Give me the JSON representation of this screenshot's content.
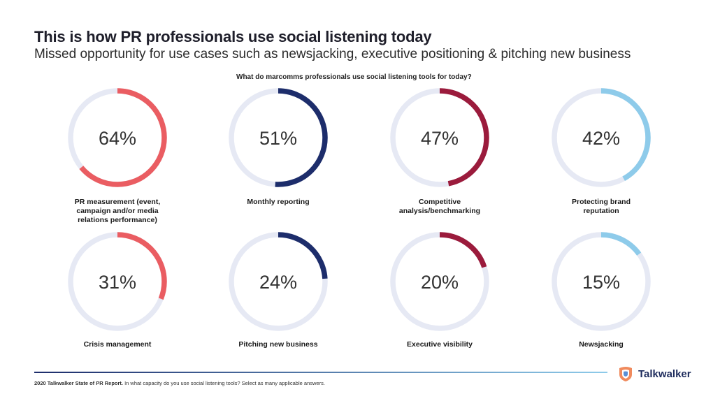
{
  "title": "This is how PR professionals use social listening today",
  "subtitle": "Missed opportunity for use cases such as newsjacking, executive positioning & pitching new business",
  "chart_heading": "What do marcomms professionals use social listening tools for today?",
  "source": {
    "bold": "2020 Talkwalker State of PR Report.",
    "text": " In what capacity do you use social listening tools? Select as many applicable answers."
  },
  "logo": {
    "text": "Talkwalker",
    "icon": "talkwalker-logo-icon"
  },
  "colors": {
    "track": "#e6e9f4",
    "coral": "#ea5d62",
    "navy": "#1d2d6b",
    "crimson": "#9b1b3c",
    "skyblue": "#8ecbea",
    "footer_line_start": "#1d2d6b",
    "footer_line_end": "#8ecbea"
  },
  "chart_data": {
    "type": "donut",
    "title": "What do marcomms professionals use social listening tools for today?",
    "unit": "%",
    "max": 100,
    "items": [
      {
        "label": "PR measurement (event, campaign and/or media relations performance)",
        "value": 64,
        "display": "64%",
        "color": "#ea5d62"
      },
      {
        "label": "Monthly reporting",
        "value": 51,
        "display": "51%",
        "color": "#1d2d6b"
      },
      {
        "label": "Competitive analysis/benchmarking",
        "value": 47,
        "display": "47%",
        "color": "#9b1b3c"
      },
      {
        "label": "Protecting brand reputation",
        "value": 42,
        "display": "42%",
        "color": "#8ecbea"
      },
      {
        "label": "Crisis management",
        "value": 31,
        "display": "31%",
        "color": "#ea5d62"
      },
      {
        "label": "Pitching new business",
        "value": 24,
        "display": "24%",
        "color": "#1d2d6b"
      },
      {
        "label": "Executive visibility",
        "value": 20,
        "display": "20%",
        "color": "#9b1b3c"
      },
      {
        "label": "Newsjacking",
        "value": 15,
        "display": "15%",
        "color": "#8ecbea"
      }
    ]
  }
}
